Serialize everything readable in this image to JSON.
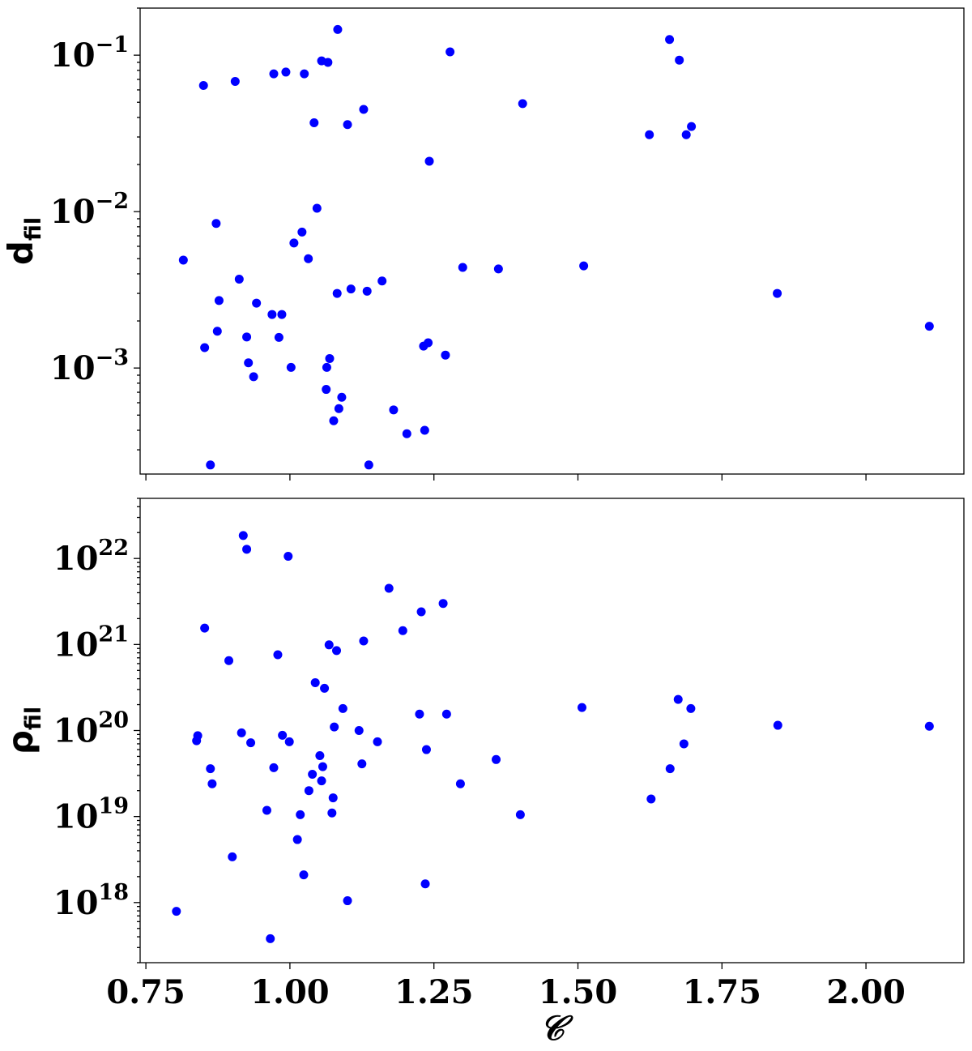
{
  "chart_data": [
    {
      "type": "scatter",
      "ylabel_main": "d",
      "ylabel_sub": "fil",
      "x_scale": "linear",
      "y_scale": "log",
      "xlim": [
        0.74,
        2.17
      ],
      "ylim": [
        0.00021,
        0.2
      ],
      "x_ticks": [
        0.75,
        1.0,
        1.25,
        1.5,
        1.75,
        2.0
      ],
      "x_tick_labels_shown": false,
      "y_ticks": [
        {
          "value": 0.1,
          "base": "10",
          "exp": "−1"
        },
        {
          "value": 0.01,
          "base": "10",
          "exp": "−2"
        },
        {
          "value": 0.001,
          "base": "10",
          "exp": "−3"
        }
      ],
      "marker_color": "#0000ff",
      "points": [
        {
          "x": 0.815,
          "y": 0.0049
        },
        {
          "x": 0.85,
          "y": 0.064
        },
        {
          "x": 0.852,
          "y": 0.00135
        },
        {
          "x": 0.862,
          "y": 0.00024
        },
        {
          "x": 0.872,
          "y": 0.0084
        },
        {
          "x": 0.874,
          "y": 0.00172
        },
        {
          "x": 0.877,
          "y": 0.0027
        },
        {
          "x": 0.905,
          "y": 0.068
        },
        {
          "x": 0.912,
          "y": 0.0037
        },
        {
          "x": 0.925,
          "y": 0.00158
        },
        {
          "x": 0.928,
          "y": 0.00108
        },
        {
          "x": 0.937,
          "y": 0.00088
        },
        {
          "x": 0.942,
          "y": 0.0026
        },
        {
          "x": 0.969,
          "y": 0.0022
        },
        {
          "x": 0.972,
          "y": 0.076
        },
        {
          "x": 0.981,
          "y": 0.00157
        },
        {
          "x": 0.986,
          "y": 0.0022
        },
        {
          "x": 0.993,
          "y": 0.078
        },
        {
          "x": 1.002,
          "y": 0.00101
        },
        {
          "x": 1.007,
          "y": 0.0063
        },
        {
          "x": 1.021,
          "y": 0.0074
        },
        {
          "x": 1.025,
          "y": 0.076
        },
        {
          "x": 1.032,
          "y": 0.005
        },
        {
          "x": 1.042,
          "y": 0.037
        },
        {
          "x": 1.047,
          "y": 0.0105
        },
        {
          "x": 1.055,
          "y": 0.092
        },
        {
          "x": 1.063,
          "y": 0.00073
        },
        {
          "x": 1.064,
          "y": 0.00101
        },
        {
          "x": 1.066,
          "y": 0.09
        },
        {
          "x": 1.069,
          "y": 0.00115
        },
        {
          "x": 1.076,
          "y": 0.00046
        },
        {
          "x": 1.082,
          "y": 0.003
        },
        {
          "x": 1.083,
          "y": 0.146
        },
        {
          "x": 1.085,
          "y": 0.00055
        },
        {
          "x": 1.09,
          "y": 0.00065
        },
        {
          "x": 1.1,
          "y": 0.036
        },
        {
          "x": 1.106,
          "y": 0.0032
        },
        {
          "x": 1.128,
          "y": 0.045
        },
        {
          "x": 1.134,
          "y": 0.0031
        },
        {
          "x": 1.137,
          "y": 0.00024
        },
        {
          "x": 1.16,
          "y": 0.0036
        },
        {
          "x": 1.18,
          "y": 0.00054
        },
        {
          "x": 1.203,
          "y": 0.00038
        },
        {
          "x": 1.232,
          "y": 0.00138
        },
        {
          "x": 1.234,
          "y": 0.0004
        },
        {
          "x": 1.24,
          "y": 0.00145
        },
        {
          "x": 1.242,
          "y": 0.021
        },
        {
          "x": 1.27,
          "y": 0.00121
        },
        {
          "x": 1.278,
          "y": 0.105
        },
        {
          "x": 1.3,
          "y": 0.0044
        },
        {
          "x": 1.362,
          "y": 0.0043
        },
        {
          "x": 1.404,
          "y": 0.049
        },
        {
          "x": 1.51,
          "y": 0.0045
        },
        {
          "x": 1.624,
          "y": 0.031
        },
        {
          "x": 1.659,
          "y": 0.126
        },
        {
          "x": 1.676,
          "y": 0.093
        },
        {
          "x": 1.688,
          "y": 0.031
        },
        {
          "x": 1.697,
          "y": 0.035
        },
        {
          "x": 1.846,
          "y": 0.003
        },
        {
          "x": 2.11,
          "y": 0.00185
        }
      ]
    },
    {
      "type": "scatter",
      "ylabel_main": "ρ",
      "ylabel_sub": "fil",
      "xlabel": "𝒞",
      "x_scale": "linear",
      "y_scale": "log",
      "xlim": [
        0.74,
        2.17
      ],
      "ylim": [
        2e+17,
        5e+22
      ],
      "x_ticks": [
        0.75,
        1.0,
        1.25,
        1.5,
        1.75,
        2.0
      ],
      "x_tick_labels": [
        "0.75",
        "1.00",
        "1.25",
        "1.50",
        "1.75",
        "2.00"
      ],
      "y_ticks": [
        {
          "value": 1e+22,
          "base": "10",
          "exp": "22"
        },
        {
          "value": 1e+21,
          "base": "10",
          "exp": "21"
        },
        {
          "value": 1e+20,
          "base": "10",
          "exp": "20"
        },
        {
          "value": 1e+19,
          "base": "10",
          "exp": "19"
        },
        {
          "value": 1e+18,
          "base": "10",
          "exp": "18"
        }
      ],
      "marker_color": "#0000ff",
      "points": [
        {
          "x": 0.803,
          "y": 7.9e+17
        },
        {
          "x": 0.838,
          "y": 7.6e+19
        },
        {
          "x": 0.84,
          "y": 8.7e+19
        },
        {
          "x": 0.852,
          "y": 1.55e+21
        },
        {
          "x": 0.862,
          "y": 3.6e+19
        },
        {
          "x": 0.865,
          "y": 2.4e+19
        },
        {
          "x": 0.894,
          "y": 6.5e+20
        },
        {
          "x": 0.9,
          "y": 3.4e+18
        },
        {
          "x": 0.916,
          "y": 9.4e+19
        },
        {
          "x": 0.919,
          "y": 1.85e+22
        },
        {
          "x": 0.925,
          "y": 1.28e+22
        },
        {
          "x": 0.932,
          "y": 7.2e+19
        },
        {
          "x": 0.96,
          "y": 1.18e+19
        },
        {
          "x": 0.966,
          "y": 3.8e+17
        },
        {
          "x": 0.972,
          "y": 3.7e+19
        },
        {
          "x": 0.979,
          "y": 7.6e+20
        },
        {
          "x": 0.987,
          "y": 8.8e+19
        },
        {
          "x": 0.997,
          "y": 1.06e+22
        },
        {
          "x": 0.999,
          "y": 7.4e+19
        },
        {
          "x": 1.013,
          "y": 5.4e+18
        },
        {
          "x": 1.018,
          "y": 1.05e+19
        },
        {
          "x": 1.024,
          "y": 2.1e+18
        },
        {
          "x": 1.033,
          "y": 2e+19
        },
        {
          "x": 1.039,
          "y": 3.1e+19
        },
        {
          "x": 1.044,
          "y": 3.6e+20
        },
        {
          "x": 1.052,
          "y": 5.1e+19
        },
        {
          "x": 1.055,
          "y": 2.6e+19
        },
        {
          "x": 1.057,
          "y": 3.8e+19
        },
        {
          "x": 1.06,
          "y": 3.1e+20
        },
        {
          "x": 1.068,
          "y": 9.9e+20
        },
        {
          "x": 1.073,
          "y": 1.1e+19
        },
        {
          "x": 1.075,
          "y": 1.65e+19
        },
        {
          "x": 1.077,
          "y": 1.1e+20
        },
        {
          "x": 1.081,
          "y": 8.5e+20
        },
        {
          "x": 1.092,
          "y": 1.8e+20
        },
        {
          "x": 1.1,
          "y": 1.05e+18
        },
        {
          "x": 1.12,
          "y": 1e+20
        },
        {
          "x": 1.125,
          "y": 4.1e+19
        },
        {
          "x": 1.128,
          "y": 1.1e+21
        },
        {
          "x": 1.152,
          "y": 7.4e+19
        },
        {
          "x": 1.172,
          "y": 4.5e+21
        },
        {
          "x": 1.196,
          "y": 1.45e+21
        },
        {
          "x": 1.225,
          "y": 1.55e+20
        },
        {
          "x": 1.228,
          "y": 2.4e+21
        },
        {
          "x": 1.235,
          "y": 1.65e+18
        },
        {
          "x": 1.237,
          "y": 6e+19
        },
        {
          "x": 1.266,
          "y": 3e+21
        },
        {
          "x": 1.272,
          "y": 1.55e+20
        },
        {
          "x": 1.296,
          "y": 2.4e+19
        },
        {
          "x": 1.358,
          "y": 4.6e+19
        },
        {
          "x": 1.4,
          "y": 1.05e+19
        },
        {
          "x": 1.507,
          "y": 1.85e+20
        },
        {
          "x": 1.627,
          "y": 1.6e+19
        },
        {
          "x": 1.66,
          "y": 3.6e+19
        },
        {
          "x": 1.674,
          "y": 2.3e+20
        },
        {
          "x": 1.684,
          "y": 7e+19
        },
        {
          "x": 1.696,
          "y": 1.8e+20
        },
        {
          "x": 1.847,
          "y": 1.15e+20
        },
        {
          "x": 2.11,
          "y": 1.12e+20
        }
      ]
    }
  ]
}
